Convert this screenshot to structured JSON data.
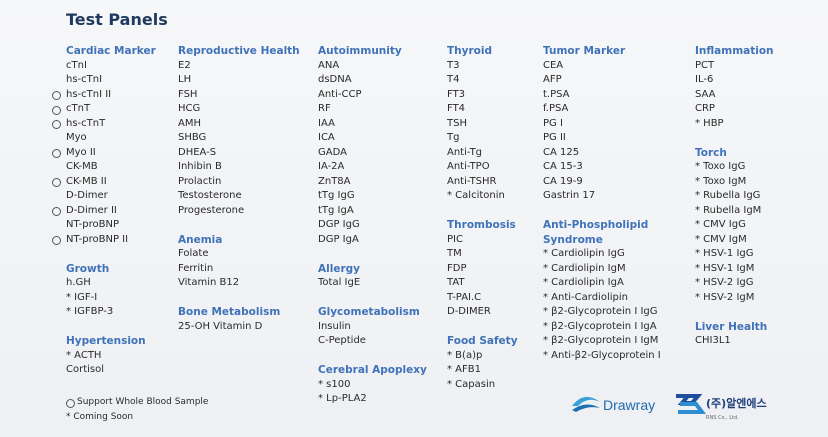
{
  "header": {
    "title": "Test Panels"
  },
  "columns": [
    [
      {
        "title": "Cardiac Marker",
        "items": [
          {
            "text": "cTnI"
          },
          {
            "text": "hs-cTnI"
          },
          {
            "text": "hs-cTnI II",
            "circle": true
          },
          {
            "text": "cTnT",
            "circle": true
          },
          {
            "text": "hs-cTnT",
            "circle": true
          },
          {
            "text": "Myo"
          },
          {
            "text": "Myo II",
            "circle": true
          },
          {
            "text": "CK-MB"
          },
          {
            "text": "CK-MB II",
            "circle": true
          },
          {
            "text": "D-Dimer"
          },
          {
            "text": "D-Dimer II",
            "circle": true
          },
          {
            "text": "NT-proBNP"
          },
          {
            "text": "NT-proBNP II",
            "circle": true
          }
        ]
      },
      {
        "title": "Growth",
        "items": [
          {
            "text": "h.GH"
          },
          {
            "text": "* IGF-I"
          },
          {
            "text": "* IGFBP-3"
          }
        ]
      },
      {
        "title": "Hypertension",
        "items": [
          {
            "text": "* ACTH"
          },
          {
            "text": "Cortisol"
          }
        ]
      }
    ],
    [
      {
        "title": "Reproductive Health",
        "items": [
          {
            "text": "E2"
          },
          {
            "text": "LH"
          },
          {
            "text": "FSH"
          },
          {
            "text": "HCG"
          },
          {
            "text": "AMH"
          },
          {
            "text": "SHBG"
          },
          {
            "text": "DHEA-S"
          },
          {
            "text": "Inhibin B"
          },
          {
            "text": "Prolactin"
          },
          {
            "text": "Testosterone"
          },
          {
            "text": "Progesterone"
          }
        ]
      },
      {
        "title": "Anemia",
        "items": [
          {
            "text": "Folate"
          },
          {
            "text": "Ferritin"
          },
          {
            "text": "Vitamin B12"
          }
        ]
      },
      {
        "title": "Bone Metabolism",
        "items": [
          {
            "text": "25-OH Vitamin D"
          }
        ]
      }
    ],
    [
      {
        "title": "Autoimmunity",
        "items": [
          {
            "text": "ANA"
          },
          {
            "text": "dsDNA"
          },
          {
            "text": "Anti-CCP"
          },
          {
            "text": "RF"
          },
          {
            "text": "IAA"
          },
          {
            "text": "ICA"
          },
          {
            "text": "GADA"
          },
          {
            "text": "IA-2A"
          },
          {
            "text": "ZnT8A"
          },
          {
            "text": "tTg IgG"
          },
          {
            "text": "tTg IgA"
          },
          {
            "text": "DGP IgG"
          },
          {
            "text": "DGP IgA"
          }
        ]
      },
      {
        "title": "Allergy",
        "items": [
          {
            "text": "Total IgE"
          }
        ]
      },
      {
        "title": "Glycometabolism",
        "items": [
          {
            "text": "Insulin"
          },
          {
            "text": "C-Peptide"
          }
        ]
      },
      {
        "title": "Cerebral Apoplexy",
        "items": [
          {
            "text": "* s100"
          },
          {
            "text": "* Lp-PLA2"
          }
        ]
      }
    ],
    [
      {
        "title": "Thyroid",
        "items": [
          {
            "text": "T3"
          },
          {
            "text": "T4"
          },
          {
            "text": "FT3"
          },
          {
            "text": "FT4"
          },
          {
            "text": "TSH"
          },
          {
            "text": "Tg"
          },
          {
            "text": "Anti-Tg"
          },
          {
            "text": "Anti-TPO"
          },
          {
            "text": "Anti-TSHR"
          },
          {
            "text": "* Calcitonin"
          }
        ]
      },
      {
        "title": "Thrombosis",
        "items": [
          {
            "text": "PIC"
          },
          {
            "text": "TM"
          },
          {
            "text": "FDP"
          },
          {
            "text": "TAT"
          },
          {
            "text": "T-PAI.C"
          },
          {
            "text": "D-DIMER"
          }
        ]
      },
      {
        "title": "Food Safety",
        "items": [
          {
            "text": "* B(a)p"
          },
          {
            "text": "* AFB1"
          },
          {
            "text": "* Capasin"
          }
        ]
      }
    ],
    [
      {
        "title": "Tumor Marker",
        "items": [
          {
            "text": "CEA"
          },
          {
            "text": "AFP"
          },
          {
            "text": "t.PSA"
          },
          {
            "text": "f.PSA"
          },
          {
            "text": "PG I"
          },
          {
            "text": "PG II"
          },
          {
            "text": "CA 125"
          },
          {
            "text": "CA 15-3"
          },
          {
            "text": "CA 19-9"
          },
          {
            "text": "Gastrin 17"
          }
        ]
      },
      {
        "title": "Anti-Phospholipid Syndrome",
        "items": [
          {
            "text": "* Cardiolipin IgG"
          },
          {
            "text": "* Cardiolipin IgM"
          },
          {
            "text": "* Cardiolipin IgA"
          },
          {
            "text": "* Anti-Cardiolipin"
          },
          {
            "text": "* β2-Glycoprotein I IgG"
          },
          {
            "text": "* β2-Glycoprotein I IgA"
          },
          {
            "text": "* β2-Glycoprotein I IgM"
          },
          {
            "text": "* Anti-β2-Glycoprotein I"
          }
        ]
      }
    ],
    [
      {
        "title": "Inflammation",
        "items": [
          {
            "text": "PCT"
          },
          {
            "text": "IL-6"
          },
          {
            "text": "SAA"
          },
          {
            "text": "CRP"
          },
          {
            "text": "* HBP"
          }
        ]
      },
      {
        "title": "Torch",
        "items": [
          {
            "text": "* Toxo IgG"
          },
          {
            "text": "* Toxo IgM"
          },
          {
            "text": "* Rubella IgG"
          },
          {
            "text": "* Rubella IgM"
          },
          {
            "text": "* CMV IgG"
          },
          {
            "text": "* CMV IgM"
          },
          {
            "text": "* HSV-1 IgG"
          },
          {
            "text": "* HSV-1 IgM"
          },
          {
            "text": "* HSV-2 IgG"
          },
          {
            "text": "* HSV-2 IgM"
          }
        ]
      },
      {
        "title": "Liver Health",
        "items": [
          {
            "text": "CHI3L1"
          }
        ]
      }
    ]
  ],
  "legend": [
    {
      "text": "Support Whole Blood Sample",
      "circle": true
    },
    {
      "text": "* Coming Soon"
    }
  ],
  "logos": {
    "drawray": "Drawray",
    "rns": "(주)알엔에스",
    "rns_sub": "RNS Co., Ltd."
  }
}
